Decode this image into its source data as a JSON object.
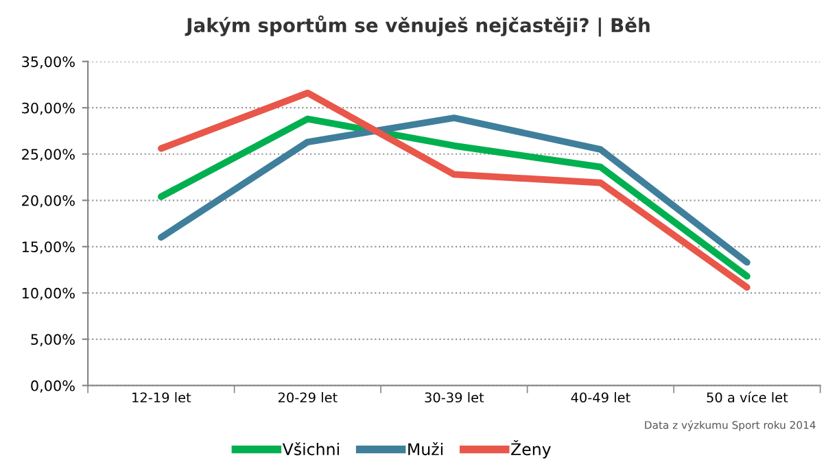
{
  "chart_data": {
    "type": "line",
    "title": "Jakým sportům se věnuješ nejčastěji? | Běh",
    "categories": [
      "12-19 let",
      "20-29 let",
      "30-39 let",
      "40-49 let",
      "50 a více let"
    ],
    "series": [
      {
        "name": "Všichni",
        "color": "#00b050",
        "values": [
          20.4,
          28.8,
          25.9,
          23.6,
          11.8
        ]
      },
      {
        "name": "Muži",
        "color": "#3f7f9b",
        "values": [
          16.0,
          26.3,
          28.9,
          25.5,
          13.3
        ]
      },
      {
        "name": "Ženy",
        "color": "#e8574a",
        "values": [
          25.6,
          31.6,
          22.8,
          21.9,
          10.6
        ]
      }
    ],
    "ylim": [
      0,
      35
    ],
    "yticks": [
      {
        "value": 0,
        "label": "0,00%"
      },
      {
        "value": 5,
        "label": "5,00%"
      },
      {
        "value": 10,
        "label": "10,00%"
      },
      {
        "value": 15,
        "label": "15,00%"
      },
      {
        "value": 20,
        "label": "20,00%"
      },
      {
        "value": 25,
        "label": "25,00%"
      },
      {
        "value": 30,
        "label": "30,00%"
      },
      {
        "value": 35,
        "label": "35,00%"
      }
    ],
    "grid": "y",
    "legend": "bottom",
    "marker": "none",
    "line_style": "solid",
    "annotations": [
      "Data z výzkumu Sport roku 2014"
    ]
  }
}
